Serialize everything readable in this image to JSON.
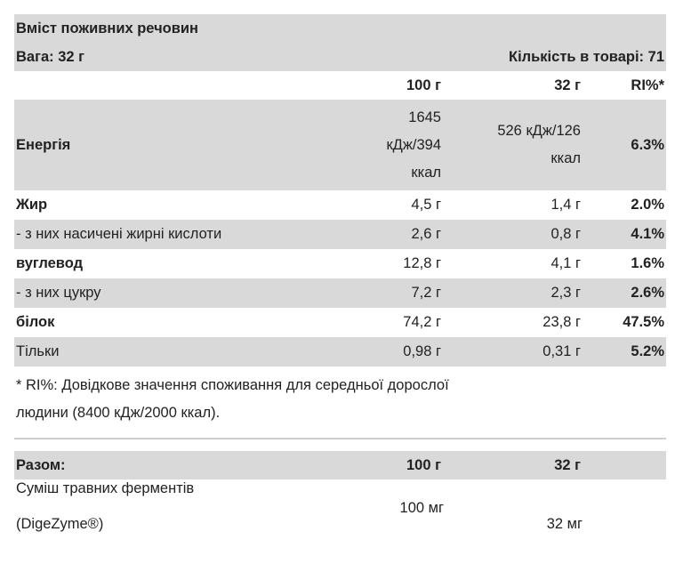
{
  "header": {
    "title": "Вміст поживних речовин",
    "weight": "Вага: 32 г",
    "servings": "Кількість в товарі: 71"
  },
  "columns": {
    "per100": "100 г",
    "perServing": "32 г",
    "ri": "RI%*"
  },
  "energy": {
    "name": "Енергія",
    "per100_lines": [
      "1645",
      "кДж/394",
      "ккал"
    ],
    "perServing_lines": [
      "526 кДж/126",
      "ккал"
    ],
    "ri": "6.3%"
  },
  "rows": [
    {
      "name": "Жир",
      "bold": true,
      "per100": "4,5 г",
      "perServing": "1,4 г",
      "ri": "2.0%"
    },
    {
      "name": "- з них насичені жирні кислоти",
      "bold": false,
      "per100": "2,6 г",
      "perServing": "0,8 г",
      "ri": "4.1%"
    },
    {
      "name": "вуглевод",
      "bold": true,
      "per100": "12,8 г",
      "perServing": "4,1 г",
      "ri": "1.6%"
    },
    {
      "name": "- з них цукру",
      "bold": false,
      "per100": "7,2 г",
      "perServing": "2,3 г",
      "ri": "2.6%"
    },
    {
      "name": "білок",
      "bold": true,
      "per100": "74,2 г",
      "perServing": "23,8 г",
      "ri": "47.5%"
    },
    {
      "name": "Тільки",
      "bold": false,
      "per100": "0,98 г",
      "perServing": "0,31 г",
      "ri": "5.2%"
    }
  ],
  "note": {
    "line1": "* RI%: Довідкове значення споживання для середньої дорослої",
    "line2": "людини (8400 кДж/2000 ккал)."
  },
  "summary": {
    "label": "Разом:",
    "per100": "100 г",
    "perServing": "32 г"
  },
  "enzymes": {
    "name_line1": "Суміш травних ферментів",
    "name_line2": "(DigeZyme®)",
    "per100": "100 мг",
    "perServing": "32 мг"
  }
}
